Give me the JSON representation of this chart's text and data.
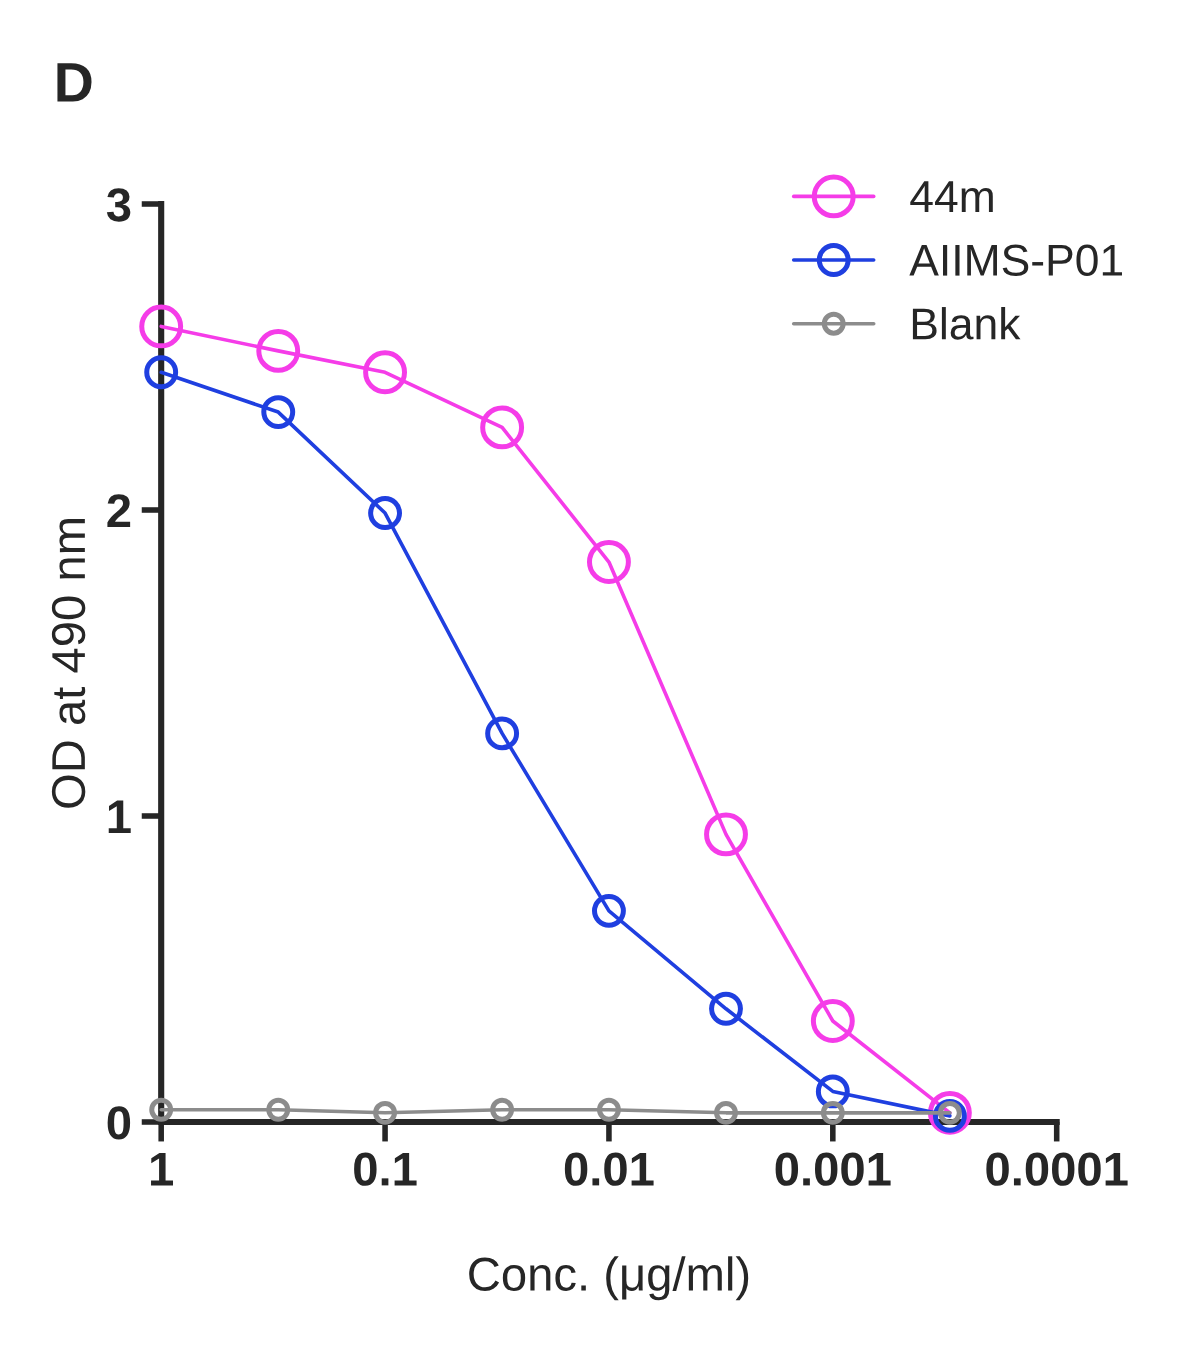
{
  "chart_data": {
    "type": "line",
    "xlabel": "Conc. (μg/ml)",
    "ylabel": "OD at 490 nm",
    "annotations": [
      "D"
    ],
    "x": [
      1,
      0.3,
      0.1,
      0.03,
      0.01,
      0.003,
      0.001,
      0.0003
    ],
    "series": [
      {
        "name": "44m",
        "color": "#f53ce8",
        "values": [
          2.6,
          2.52,
          2.45,
          2.27,
          1.83,
          0.94,
          0.33,
          0.03
        ]
      },
      {
        "name": "AIIMS-P01",
        "color": "#1f3fe0",
        "values": [
          2.45,
          2.32,
          1.99,
          1.27,
          0.69,
          0.37,
          0.1,
          0.02
        ]
      },
      {
        "name": "Blank",
        "color": "#8c8c8c",
        "values": [
          0.04,
          0.04,
          0.03,
          0.04,
          0.04,
          0.03,
          0.03,
          0.03
        ]
      }
    ],
    "log": "x",
    "xlim": [
      1,
      0.0001
    ],
    "xticks": [
      1,
      0.1,
      0.01,
      0.001,
      0.0001
    ],
    "ylim": [
      0,
      3
    ],
    "yticks": [
      0,
      1,
      2,
      3
    ],
    "grid": false,
    "legend": "top right",
    "marker": "circle",
    "line_style": "solid"
  }
}
